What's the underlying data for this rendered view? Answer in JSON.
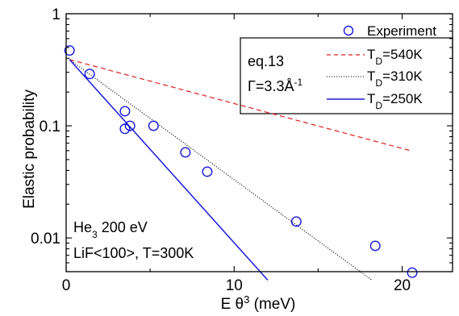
{
  "chart_data": {
    "type": "scatter",
    "xlabel_main": "E θ",
    "xlabel_sup": "3",
    "xlabel_unit": " (meV)",
    "ylabel": "Elastic probability",
    "xlim": [
      0,
      23
    ],
    "ylim": [
      0.005,
      1
    ],
    "yscale": "log",
    "x_ticks": [
      0,
      10,
      20
    ],
    "y_ticks": [
      {
        "value": 1,
        "label": "1"
      },
      {
        "value": 0.1,
        "label": "0.1"
      },
      {
        "value": 0.01,
        "label": "0.01"
      }
    ],
    "experiment": {
      "name": "Experiment",
      "color": "#1a1adb",
      "points": [
        {
          "x": 0.2,
          "y": 0.47
        },
        {
          "x": 1.4,
          "y": 0.29
        },
        {
          "x": 3.5,
          "y": 0.135
        },
        {
          "x": 3.5,
          "y": 0.094
        },
        {
          "x": 3.8,
          "y": 0.1
        },
        {
          "x": 5.2,
          "y": 0.1
        },
        {
          "x": 7.1,
          "y": 0.058
        },
        {
          "x": 8.4,
          "y": 0.039
        },
        {
          "x": 13.7,
          "y": 0.014
        },
        {
          "x": 18.4,
          "y": 0.0085
        },
        {
          "x": 20.6,
          "y": 0.0049
        }
      ]
    },
    "series": [
      {
        "name_main": "T",
        "name_sub": "D",
        "name_rest": "=540K",
        "color": "#e02020",
        "style": "dashed",
        "x": [
          0.2,
          20.5
        ],
        "y": [
          0.39,
          0.06
        ]
      },
      {
        "name_main": "T",
        "name_sub": "D",
        "name_rest": "=310K",
        "color": "#000000",
        "style": "dotted",
        "x": [
          0.2,
          18.2
        ],
        "y": [
          0.39,
          0.0042
        ]
      },
      {
        "name_main": "T",
        "name_sub": "D",
        "name_rest": "=250K",
        "color": "#1a1adb",
        "style": "solid",
        "x": [
          0.2,
          12.0
        ],
        "y": [
          0.39,
          0.0042
        ]
      }
    ],
    "notes": {
      "eq": "eq.13",
      "gamma_main": "Γ=3.3Å",
      "gamma_sup": "-1",
      "system_main": "He",
      "system_sub": "3",
      "system_rest": " 200 eV",
      "crystal": "LiF<100>, T=300K"
    }
  }
}
